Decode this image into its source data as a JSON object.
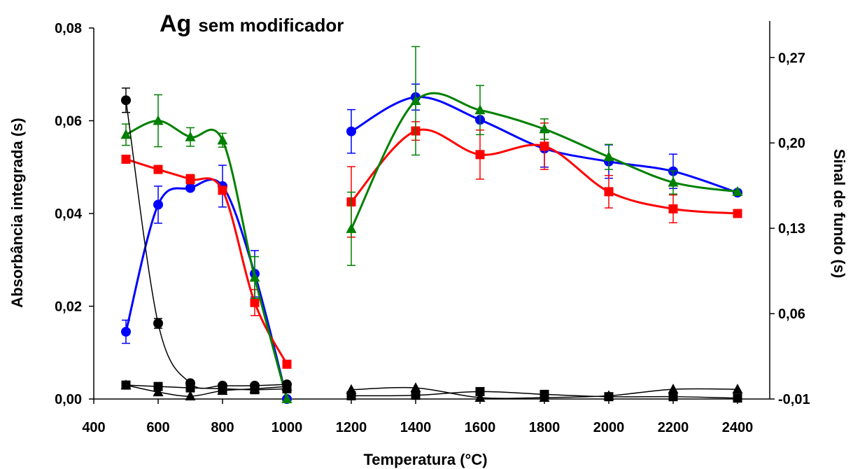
{
  "chart_data": {
    "type": "line",
    "title": {
      "main": "Ag",
      "rest": "sem modificador"
    },
    "xlabel": "Temperatura (°C)",
    "ylabel": "Absorbância integrada (s)",
    "y2label": "Sinal de fundo (s)",
    "xlim": [
      400,
      2500
    ],
    "ylim": [
      0,
      0.08
    ],
    "y2lim": [
      -0.01,
      0.3
    ],
    "x_ticks": [
      "400",
      "600",
      "800",
      "1000",
      "1200",
      "1400",
      "1600",
      "1800",
      "2000",
      "2200",
      "2400"
    ],
    "y_ticks": [
      "0,00",
      "0,02",
      "0,04",
      "0,06",
      "0,08"
    ],
    "y2_ticks": [
      "-0,01",
      "0,06",
      "0,13",
      "0,20",
      "0,27"
    ],
    "grid": false,
    "legend": "none",
    "series": [
      {
        "color": "#0000ff",
        "marker": "circle",
        "axis": "left",
        "linewidth": 3,
        "errorbars": true,
        "segments": [
          {
            "x": [
              500,
              600,
              700,
              800,
              900,
              1000
            ],
            "y": [
              0.0145,
              0.0419,
              0.0455,
              0.0459,
              0.027,
              0.0
            ],
            "err": [
              0.0025,
              0.004,
              0.0,
              0.0045,
              0.005,
              0.0
            ]
          },
          {
            "x": [
              1200,
              1400,
              1600,
              1800,
              2000,
              2200,
              2400
            ],
            "y": [
              0.0577,
              0.0651,
              0.0602,
              0.054,
              0.0512,
              0.0491,
              0.0445
            ],
            "err": [
              0.0047,
              0.0028,
              0.0,
              0.004,
              0.0036,
              0.0037,
              0.0
            ]
          }
        ]
      },
      {
        "color": "#ff0000",
        "marker": "square",
        "axis": "left",
        "linewidth": 3,
        "errorbars": true,
        "segments": [
          {
            "x": [
              500,
              600,
              700,
              800,
              900,
              1000
            ],
            "y": [
              0.0517,
              0.0495,
              0.0474,
              0.045,
              0.0208,
              0.0075
            ],
            "err": [
              0.0,
              0.0,
              0.001,
              0.0,
              0.0028,
              0.0
            ]
          },
          {
            "x": [
              1200,
              1400,
              1600,
              1800,
              2000,
              2200,
              2400
            ],
            "y": [
              0.0425,
              0.0578,
              0.0527,
              0.0545,
              0.0447,
              0.041,
              0.04
            ],
            "err": [
              0.0076,
              0.002,
              0.0053,
              0.005,
              0.0035,
              0.003,
              0.0
            ]
          }
        ]
      },
      {
        "color": "#008000",
        "marker": "triangle",
        "axis": "left",
        "linewidth": 3,
        "errorbars": true,
        "segments": [
          {
            "x": [
              500,
              600,
              700,
              800,
              900,
              1000
            ],
            "y": [
              0.057,
              0.06,
              0.0565,
              0.0558,
              0.0262,
              0.0
            ],
            "err": [
              0.0023,
              0.0056,
              0.002,
              0.0015,
              0.0045,
              0.0
            ]
          },
          {
            "x": [
              1200,
              1400,
              1600,
              1800,
              2000,
              2200,
              2400
            ],
            "y": [
              0.0367,
              0.0643,
              0.0623,
              0.0582,
              0.0522,
              0.0467,
              0.0447
            ],
            "err": [
              0.0079,
              0.0117,
              0.0053,
              0.0022,
              0.0027,
              0.0025,
              0.0
            ]
          }
        ]
      },
      {
        "color": "#000000",
        "marker": "circle",
        "axis": "right",
        "linewidth": 1.5,
        "errorbars": true,
        "segments": [
          {
            "x": [
              500,
              600,
              700,
              800,
              900,
              1000
            ],
            "y": [
              0.235,
              0.052,
              0.003,
              0.001,
              0.001,
              0.002
            ],
            "err": [
              0.01,
              0.004,
              0.0,
              0.0,
              0.0,
              0.0
            ]
          }
        ]
      },
      {
        "color": "#000000",
        "marker": "square",
        "axis": "left",
        "linewidth": 1.5,
        "errorbars": false,
        "segments": [
          {
            "x": [
              500,
              600,
              700,
              800,
              900,
              1000
            ],
            "y": [
              0.003,
              0.0027,
              0.0024,
              0.0022,
              0.002,
              0.0022
            ],
            "err": []
          },
          {
            "x": [
              1200,
              1400,
              1600,
              1800,
              2000,
              2200,
              2400
            ],
            "y": [
              0.0007,
              0.0008,
              0.0016,
              0.001,
              0.0005,
              0.0005,
              0.0002
            ],
            "err": []
          }
        ]
      },
      {
        "color": "#000000",
        "marker": "triangle",
        "axis": "left",
        "linewidth": 1.5,
        "errorbars": false,
        "segments": [
          {
            "x": [
              500,
              600,
              700,
              800,
              900,
              1000
            ],
            "y": [
              0.003,
              0.0015,
              0.0006,
              0.0018,
              0.0022,
              0.0027
            ],
            "err": []
          },
          {
            "x": [
              1200,
              1400,
              1600,
              1800,
              2000,
              2200,
              2400
            ],
            "y": [
              0.002,
              0.0024,
              0.0003,
              0.0003,
              0.0007,
              0.0021,
              0.0021
            ],
            "err": []
          }
        ]
      }
    ]
  }
}
